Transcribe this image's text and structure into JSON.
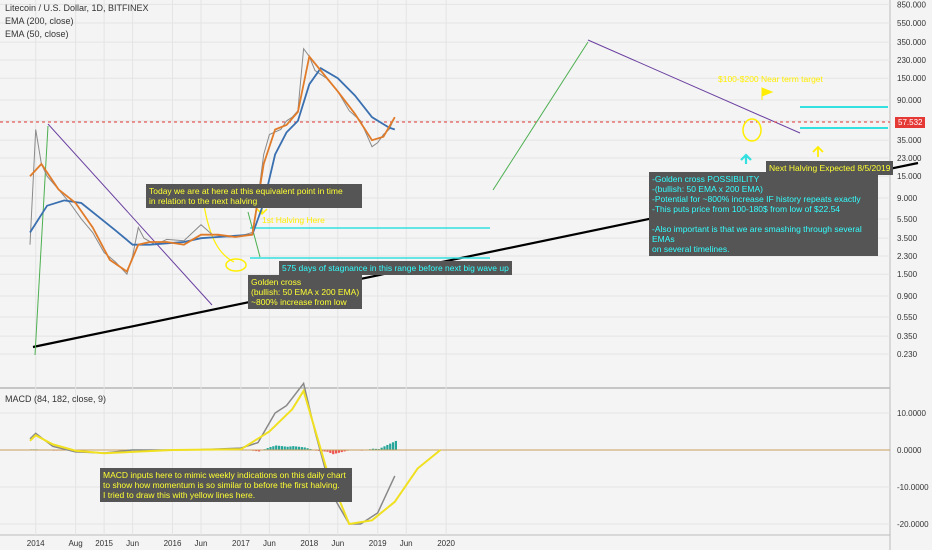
{
  "header": {
    "title": "Litecoin / U.S. Dollar, 1D, BITFINEX",
    "ema200": "EMA (200, close)",
    "ema50": "EMA (50, close)"
  },
  "macd_legend": "MACD (84, 182, close, 9)",
  "last_price": "57.532",
  "annotations": {
    "today_note": "Today we are at here at this equivalent point in time\nin relation to the next halving",
    "first_halving": "1st Halving Here",
    "stagnation": "575 days of stagnance in this range before next big wave up",
    "golden_cross_past": "Golden cross\n(bullish: 50 EMA x 200 EMA)\n~800% increase from low",
    "golden_cross_possibility": "-Golden cross POSSIBILITY\n-(bullish: 50 EMA x 200 EMA)\n-Potential for ~800% increase IF history repeats exactly\n-This puts price from 100-180$ from low of $22.54\n\n-Also important is that we are smashing through several EMAs\non several timelines.",
    "target": "$100-$200 Near term target",
    "next_halving": "Next Halving Expected 8/5/2019",
    "macd_note": "MACD inputs here to mimic weekly indications on this daily chart\nto show how momentum is so similar to before the first halving.\nI tried to draw this with yellow lines here."
  },
  "colors": {
    "background": "#f4f4f4",
    "ema200": "#3a6fb0",
    "ema50": "#e07b2a",
    "price": "#8a8a8a",
    "up_move": "#4caf50",
    "trendline": "#000000",
    "downtrend": "#6a3fa0",
    "resistance": "#33e0e0",
    "yellow": "#ffee00",
    "price_line": "#e53935",
    "macd_line": "#888888",
    "signal_line": "#f0e020",
    "hist_pos": "#26a69a",
    "hist_neg": "#ef5350"
  },
  "chart_data": [
    {
      "type": "line",
      "title": "Litecoin / U.S. Dollar, 1D, BITFINEX",
      "y_scale": "log",
      "y_ticks": [
        "850.000",
        "550.000",
        "350.000",
        "230.000",
        "150.000",
        "90.000",
        "55.000",
        "35.000",
        "23.000",
        "15.000",
        "9.000",
        "5.500",
        "3.500",
        "2.300",
        "1.500",
        "0.900",
        "0.550",
        "0.350",
        "0.230"
      ],
      "x_ticks": [
        "2014",
        "Aug",
        "2015",
        "Jun",
        "2016",
        "Jun",
        "2017",
        "Jun",
        "2018",
        "Jun",
        "2019",
        "Jun",
        "2020"
      ],
      "series": [
        {
          "name": "EMA (200, close)",
          "x": [
            "2013-12",
            "2014-03",
            "2014-06",
            "2014-09",
            "2014-12",
            "2015-03",
            "2015-06",
            "2015-09",
            "2015-12",
            "2016-03",
            "2016-06",
            "2016-09",
            "2016-12",
            "2017-03",
            "2017-05",
            "2017-07",
            "2017-09",
            "2017-11",
            "2018-01",
            "2018-03",
            "2018-06",
            "2018-09",
            "2018-12",
            "2019-03",
            "2019-04"
          ],
          "values": [
            4.0,
            7.5,
            8.5,
            8.0,
            5.8,
            4.2,
            3.0,
            3.0,
            3.1,
            3.2,
            3.5,
            3.6,
            3.7,
            3.8,
            8.0,
            25,
            42,
            55,
            130,
            190,
            150,
            100,
            60,
            47,
            45
          ]
        },
        {
          "name": "EMA (50, close)",
          "x": [
            "2013-12",
            "2014-02",
            "2014-05",
            "2014-08",
            "2014-11",
            "2015-02",
            "2015-05",
            "2015-07",
            "2015-09",
            "2015-12",
            "2016-03",
            "2016-06",
            "2016-09",
            "2016-12",
            "2017-03",
            "2017-05",
            "2017-07",
            "2017-09",
            "2017-11",
            "2018-01",
            "2018-03",
            "2018-06",
            "2018-09",
            "2018-12",
            "2019-02",
            "2019-04"
          ],
          "values": [
            15,
            20,
            11,
            8,
            4.5,
            2.1,
            1.6,
            3.0,
            3.2,
            3.2,
            3.0,
            3.8,
            3.8,
            3.6,
            3.8,
            20,
            45,
            50,
            68,
            250,
            180,
            110,
            65,
            35,
            38,
            60
          ]
        }
      ]
    },
    {
      "type": "line",
      "title": "MACD (84, 182, close, 9)",
      "y_ticks": [
        "10.0000",
        "0.0000",
        "-10.0000",
        "-20.0000"
      ],
      "series": [
        {
          "name": "MACD",
          "x": [
            "2013-12",
            "2014-01",
            "2014-04",
            "2014-08",
            "2015-01",
            "2015-06",
            "2016-01",
            "2016-06",
            "2017-01",
            "2017-04",
            "2017-07",
            "2017-09",
            "2017-12",
            "2018-02",
            "2018-05",
            "2018-08",
            "2018-10",
            "2019-01",
            "2019-04"
          ],
          "values": [
            3.0,
            4.5,
            1.0,
            -0.5,
            -0.8,
            0.0,
            0.0,
            0.1,
            0.5,
            2.0,
            10.0,
            12.0,
            18.0,
            5.0,
            -12.0,
            -20.0,
            -20.0,
            -17.0,
            -7.0
          ]
        },
        {
          "name": "Signal",
          "x": [
            "2013-12",
            "2014-01",
            "2014-04",
            "2014-08",
            "2015-01",
            "2015-06",
            "2016-01",
            "2017-01",
            "2017-06",
            "2017-10",
            "2017-12",
            "2018-04",
            "2018-08",
            "2018-12",
            "2019-04",
            "2019-08",
            "2019-12"
          ],
          "values": [
            2.5,
            4.0,
            1.5,
            -0.2,
            -0.9,
            -0.5,
            0.0,
            0.2,
            5.0,
            11.0,
            16.0,
            -5.0,
            -20.0,
            -19.0,
            -14.0,
            -5.0,
            0.0
          ]
        }
      ]
    }
  ]
}
